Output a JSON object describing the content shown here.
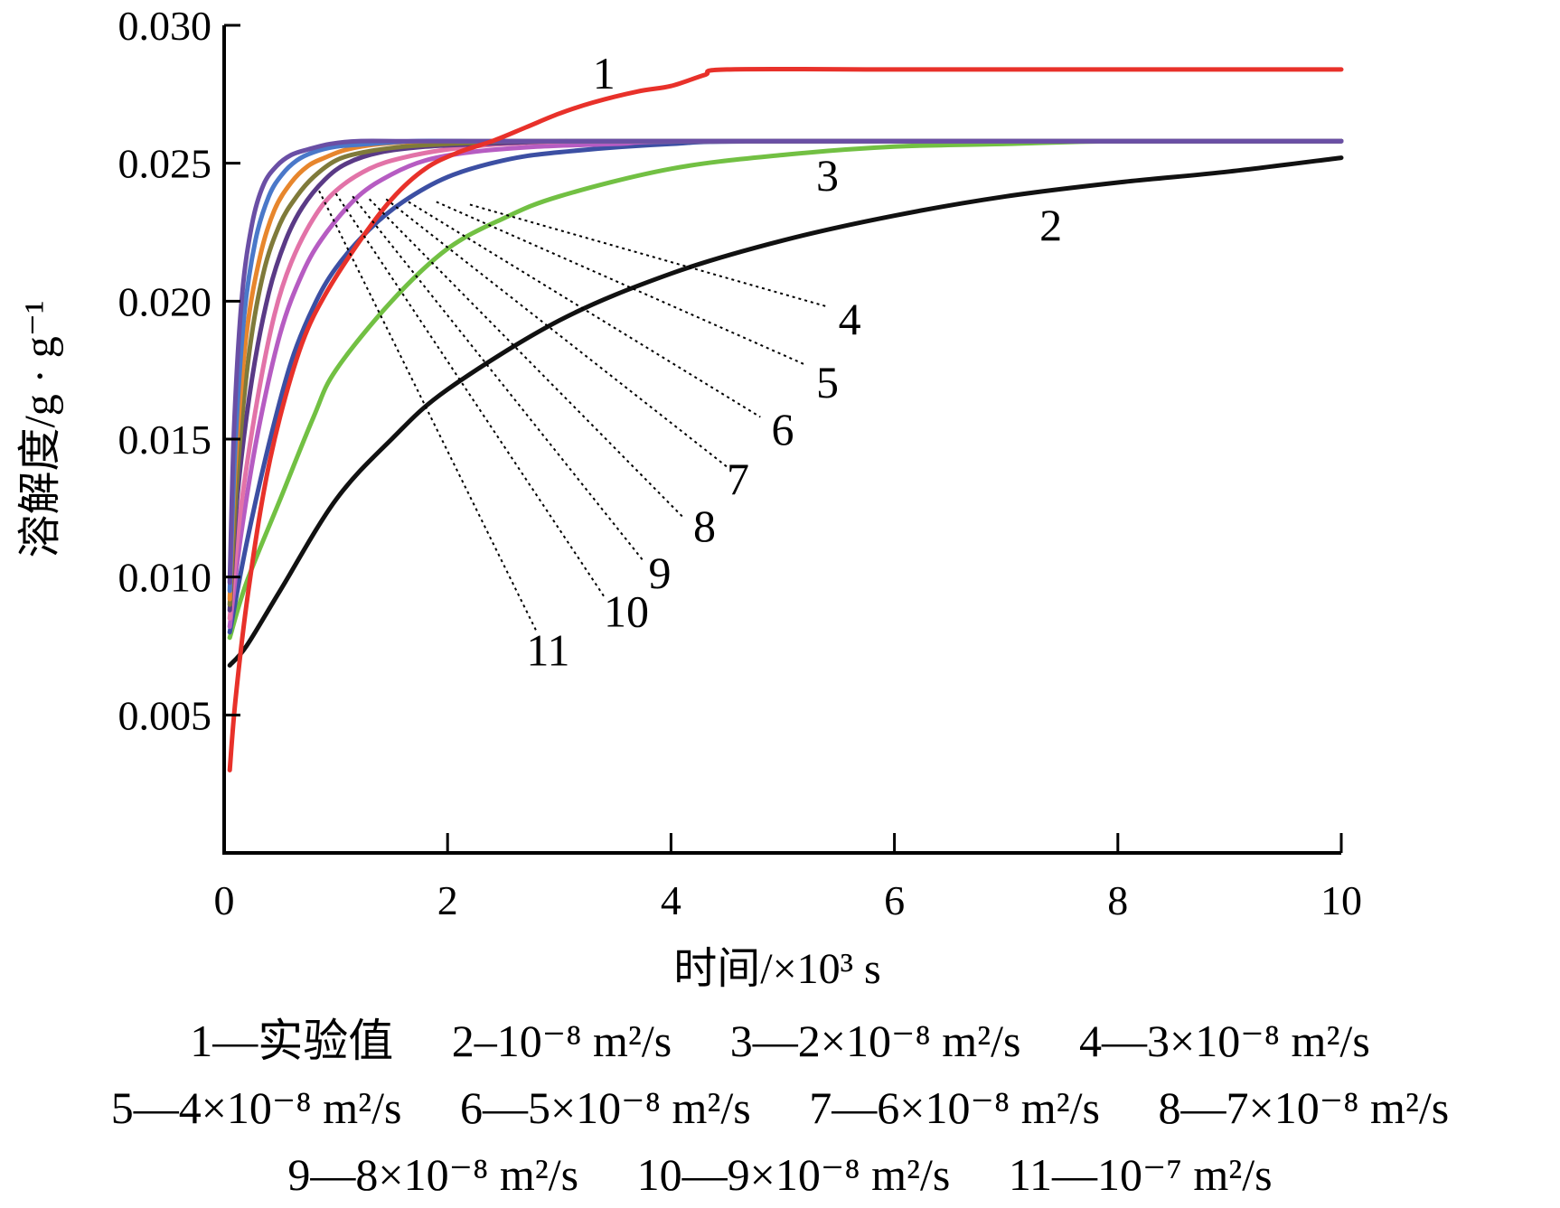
{
  "chart_data": {
    "type": "line",
    "title": "",
    "xlabel": "时间/×10³ s",
    "ylabel": "溶解度/g · g⁻¹",
    "xlim": [
      0,
      10
    ],
    "ylim": [
      0,
      0.03
    ],
    "x_ticks": [
      "0",
      "2",
      "4",
      "6",
      "8",
      "10"
    ],
    "y_ticks": [
      "0.005",
      "0.010",
      "0.015",
      "0.020",
      "0.025",
      "0.030"
    ],
    "grid": false,
    "series": [
      {
        "name": "1",
        "color": "#e8312a",
        "x": [
          0.05,
          0.1,
          0.2,
          0.35,
          0.5,
          0.7,
          0.9,
          1.2,
          1.5,
          1.8,
          2.1,
          2.4,
          2.7,
          3.0,
          3.3,
          3.7,
          4.0,
          4.3,
          4.5,
          6,
          8,
          10
        ],
        "y": [
          0.003,
          0.0055,
          0.009,
          0.013,
          0.0158,
          0.0185,
          0.0202,
          0.0221,
          0.0237,
          0.0248,
          0.0254,
          0.0258,
          0.0263,
          0.0268,
          0.0272,
          0.0276,
          0.0278,
          0.0282,
          0.0284,
          0.0284,
          0.0284,
          0.0284
        ]
      },
      {
        "name": "2",
        "color": "#111111",
        "x": [
          0.05,
          0.2,
          0.5,
          1,
          1.5,
          2,
          3,
          4,
          5,
          6,
          7,
          8,
          9,
          10
        ],
        "y": [
          0.0068,
          0.0075,
          0.0095,
          0.0128,
          0.015,
          0.0168,
          0.0193,
          0.021,
          0.0222,
          0.0231,
          0.0238,
          0.0243,
          0.0247,
          0.0252
        ]
      },
      {
        "name": "3",
        "color": "#72c043",
        "x": [
          0.05,
          0.2,
          0.5,
          0.8,
          1,
          1.5,
          2,
          2.5,
          3,
          4,
          5,
          6,
          7,
          8,
          10
        ],
        "y": [
          0.0078,
          0.0098,
          0.0128,
          0.0158,
          0.0175,
          0.02,
          0.0219,
          0.023,
          0.0238,
          0.0248,
          0.0253,
          0.0256,
          0.0257,
          0.0258,
          0.0258
        ]
      },
      {
        "name": "4",
        "color": "#3c4fa3",
        "x": [
          0.05,
          0.2,
          0.4,
          0.6,
          0.8,
          1,
          1.3,
          1.6,
          2,
          2.5,
          3,
          4,
          5,
          10
        ],
        "y": [
          0.008,
          0.0112,
          0.0148,
          0.0178,
          0.0198,
          0.0212,
          0.0226,
          0.0236,
          0.0245,
          0.0251,
          0.0254,
          0.0257,
          0.0258,
          0.0258
        ]
      },
      {
        "name": "5",
        "color": "#b65cc2",
        "x": [
          0.05,
          0.15,
          0.3,
          0.5,
          0.7,
          0.9,
          1.2,
          1.5,
          1.8,
          2.2,
          2.8,
          3.5,
          4.5,
          10
        ],
        "y": [
          0.0082,
          0.0115,
          0.0152,
          0.0188,
          0.021,
          0.0224,
          0.0238,
          0.0246,
          0.0251,
          0.0254,
          0.0256,
          0.0257,
          0.0258,
          0.0258
        ]
      },
      {
        "name": "6",
        "color": "#e273a8",
        "x": [
          0.05,
          0.15,
          0.3,
          0.45,
          0.6,
          0.8,
          1.0,
          1.3,
          1.6,
          2.0,
          2.5,
          3.2,
          4.0,
          10
        ],
        "y": [
          0.0085,
          0.0125,
          0.0165,
          0.0195,
          0.0214,
          0.023,
          0.024,
          0.0248,
          0.0252,
          0.0255,
          0.0257,
          0.0258,
          0.0258,
          0.0258
        ]
      },
      {
        "name": "7",
        "color": "#5a3a86",
        "x": [
          0.05,
          0.12,
          0.25,
          0.4,
          0.55,
          0.7,
          0.9,
          1.1,
          1.4,
          1.8,
          2.3,
          3.0,
          3.8,
          10
        ],
        "y": [
          0.0088,
          0.013,
          0.0172,
          0.0203,
          0.0222,
          0.0234,
          0.0244,
          0.025,
          0.0254,
          0.0256,
          0.0257,
          0.0258,
          0.0258,
          0.0258
        ]
      },
      {
        "name": "8",
        "color": "#7f7a3a",
        "x": [
          0.05,
          0.12,
          0.22,
          0.35,
          0.5,
          0.65,
          0.8,
          1.0,
          1.25,
          1.6,
          2.0,
          2.6,
          3.3,
          10
        ],
        "y": [
          0.009,
          0.0138,
          0.018,
          0.021,
          0.0228,
          0.0238,
          0.0245,
          0.0251,
          0.0254,
          0.0256,
          0.0257,
          0.0258,
          0.0258,
          0.0258
        ]
      },
      {
        "name": "9",
        "color": "#e7862c",
        "x": [
          0.05,
          0.1,
          0.2,
          0.32,
          0.45,
          0.6,
          0.75,
          0.9,
          1.1,
          1.4,
          1.8,
          2.3,
          3.0,
          10
        ],
        "y": [
          0.0092,
          0.014,
          0.0188,
          0.0216,
          0.0233,
          0.0243,
          0.0249,
          0.0252,
          0.0255,
          0.0257,
          0.0258,
          0.0258,
          0.0258,
          0.0258
        ]
      },
      {
        "name": "10",
        "color": "#4a78c9",
        "x": [
          0.05,
          0.1,
          0.18,
          0.28,
          0.4,
          0.52,
          0.65,
          0.8,
          1.0,
          1.3,
          1.7,
          2.2,
          2.8,
          10
        ],
        "y": [
          0.0095,
          0.0148,
          0.0195,
          0.0222,
          0.0238,
          0.0246,
          0.0251,
          0.0254,
          0.0256,
          0.0257,
          0.0258,
          0.0258,
          0.0258,
          0.0258
        ]
      },
      {
        "name": "11",
        "color": "#6a4fa5",
        "x": [
          0.05,
          0.09,
          0.16,
          0.25,
          0.35,
          0.47,
          0.6,
          0.75,
          0.95,
          1.2,
          1.6,
          2.1,
          2.7,
          10
        ],
        "y": [
          0.0098,
          0.0155,
          0.0202,
          0.0228,
          0.0242,
          0.0249,
          0.0253,
          0.0255,
          0.0257,
          0.0258,
          0.0258,
          0.0258,
          0.0258,
          0.0258
        ]
      }
    ],
    "curve_labels": [
      {
        "text": "1",
        "x": 3.4,
        "y": 0.0277
      },
      {
        "text": "2",
        "x": 7.4,
        "y": 0.0222
      },
      {
        "text": "3",
        "x": 5.4,
        "y": 0.024
      },
      {
        "text": "4",
        "x": 5.6,
        "y": 0.0188
      },
      {
        "text": "5",
        "x": 5.4,
        "y": 0.0165
      },
      {
        "text": "6",
        "x": 5.0,
        "y": 0.0148
      },
      {
        "text": "7",
        "x": 4.6,
        "y": 0.013
      },
      {
        "text": "8",
        "x": 4.3,
        "y": 0.0113
      },
      {
        "text": "9",
        "x": 3.9,
        "y": 0.0096
      },
      {
        "text": "10",
        "x": 3.6,
        "y": 0.0082
      },
      {
        "text": "11",
        "x": 2.9,
        "y": 0.0068
      }
    ],
    "leader_lines": [
      {
        "from": [
          2.2,
          0.0235
        ],
        "to": [
          5.4,
          0.0198
        ]
      },
      {
        "from": [
          1.9,
          0.0236
        ],
        "to": [
          5.2,
          0.0177
        ]
      },
      {
        "from": [
          1.65,
          0.0236
        ],
        "to": [
          4.8,
          0.0158
        ]
      },
      {
        "from": [
          1.45,
          0.0237
        ],
        "to": [
          4.5,
          0.014
        ]
      },
      {
        "from": [
          1.3,
          0.0237
        ],
        "to": [
          4.1,
          0.0122
        ]
      },
      {
        "from": [
          1.15,
          0.0238
        ],
        "to": [
          3.75,
          0.0106
        ]
      },
      {
        "from": [
          1.0,
          0.0239
        ],
        "to": [
          3.4,
          0.0093
        ]
      },
      {
        "from": [
          0.85,
          0.024
        ],
        "to": [
          2.8,
          0.008
        ]
      }
    ]
  },
  "legend": {
    "rows": [
      [
        "1—实验值",
        "2–10⁻⁸ m²/s",
        "3—2×10⁻⁸ m²/s",
        "4—3×10⁻⁸ m²/s"
      ],
      [
        "5—4×10⁻⁸ m²/s",
        "6—5×10⁻⁸ m²/s",
        "7—6×10⁻⁸ m²/s",
        "8—7×10⁻⁸ m²/s"
      ],
      [
        "9—8×10⁻⁸ m²/s",
        "10—9×10⁻⁸ m²/s",
        "11—10⁻⁷ m²/s"
      ]
    ]
  }
}
